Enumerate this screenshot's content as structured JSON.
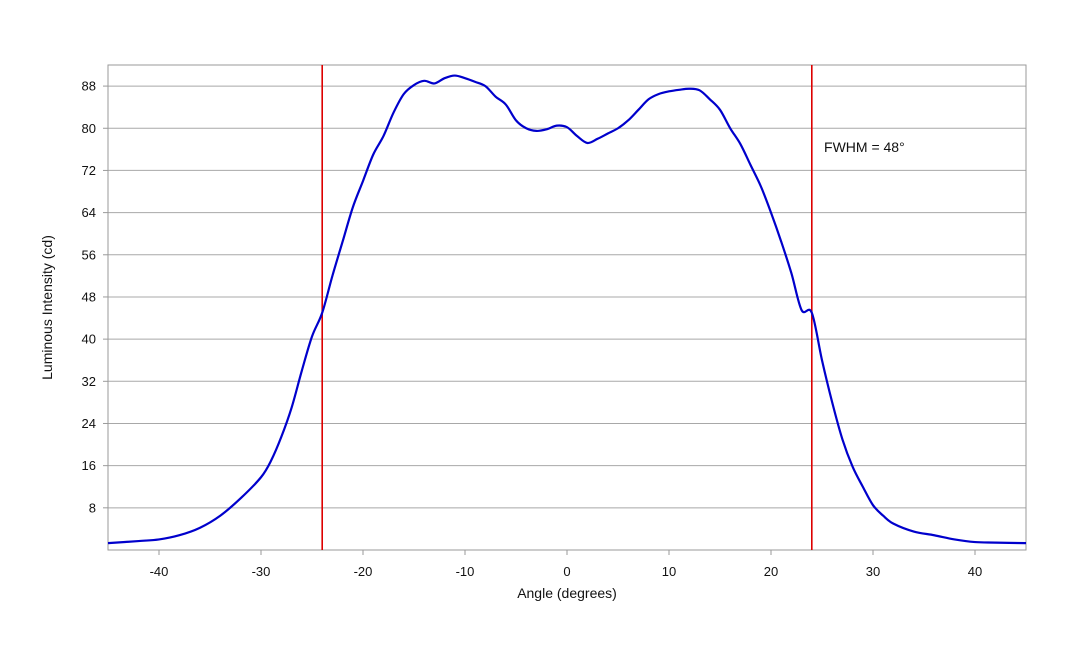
{
  "chart_data": {
    "type": "line",
    "title": "",
    "xlabel": "Angle (degrees)",
    "ylabel": "Luminous Intensity (cd)",
    "xlim": [
      -45,
      45
    ],
    "ylim": [
      0,
      92
    ],
    "xticks": [
      -40,
      -30,
      -20,
      -10,
      0,
      10,
      20,
      30,
      40
    ],
    "yticks": [
      8,
      16,
      24,
      32,
      40,
      48,
      56,
      64,
      72,
      80,
      88
    ],
    "grid": "horizontal",
    "legend": "none",
    "series": [
      {
        "color": "#0000cc",
        "x": [
          -45,
          -42,
          -40,
          -38,
          -36,
          -34,
          -32,
          -30,
          -29,
          -28,
          -27,
          -26,
          -25,
          -24,
          -23,
          -22,
          -21,
          -20,
          -19,
          -18,
          -17,
          -16,
          -15,
          -14,
          -13,
          -12,
          -11,
          -10,
          -9,
          -8,
          -7,
          -6,
          -5,
          -4,
          -3,
          -2,
          -1,
          0,
          1,
          2,
          3,
          4,
          5,
          6,
          7,
          8,
          9,
          10,
          11,
          12,
          13,
          14,
          15,
          16,
          17,
          18,
          19,
          20,
          21,
          22,
          23,
          24,
          25,
          26,
          27,
          28,
          29,
          30,
          31,
          32,
          34,
          36,
          38,
          40,
          42,
          45
        ],
        "values": [
          1.3,
          1.7,
          2.0,
          2.8,
          4.2,
          6.5,
          9.8,
          13.8,
          17.0,
          21.5,
          27.0,
          34.0,
          40.5,
          45.0,
          52.0,
          58.5,
          65.0,
          70.0,
          75.0,
          78.5,
          83.0,
          86.5,
          88.2,
          89.0,
          88.5,
          89.5,
          90.0,
          89.5,
          88.8,
          88.0,
          86.0,
          84.5,
          81.5,
          80.0,
          79.5,
          79.8,
          80.5,
          80.2,
          78.5,
          77.2,
          78.0,
          79.0,
          80.0,
          81.5,
          83.5,
          85.5,
          86.5,
          87.0,
          87.3,
          87.5,
          87.2,
          85.5,
          83.5,
          80.0,
          77.0,
          73.0,
          69.0,
          64.0,
          58.5,
          52.5,
          45.5,
          45.0,
          36.0,
          28.0,
          21.0,
          15.8,
          12.0,
          8.5,
          6.5,
          5.0,
          3.5,
          2.8,
          2.0,
          1.5,
          1.4,
          1.3
        ]
      }
    ],
    "vlines": [
      {
        "x": -24,
        "color": "#dd0000"
      },
      {
        "x": 24,
        "color": "#dd0000"
      }
    ],
    "annotations": [
      {
        "text": "FWHM = 48°",
        "x": 25.2,
        "y": 75.5
      }
    ]
  }
}
